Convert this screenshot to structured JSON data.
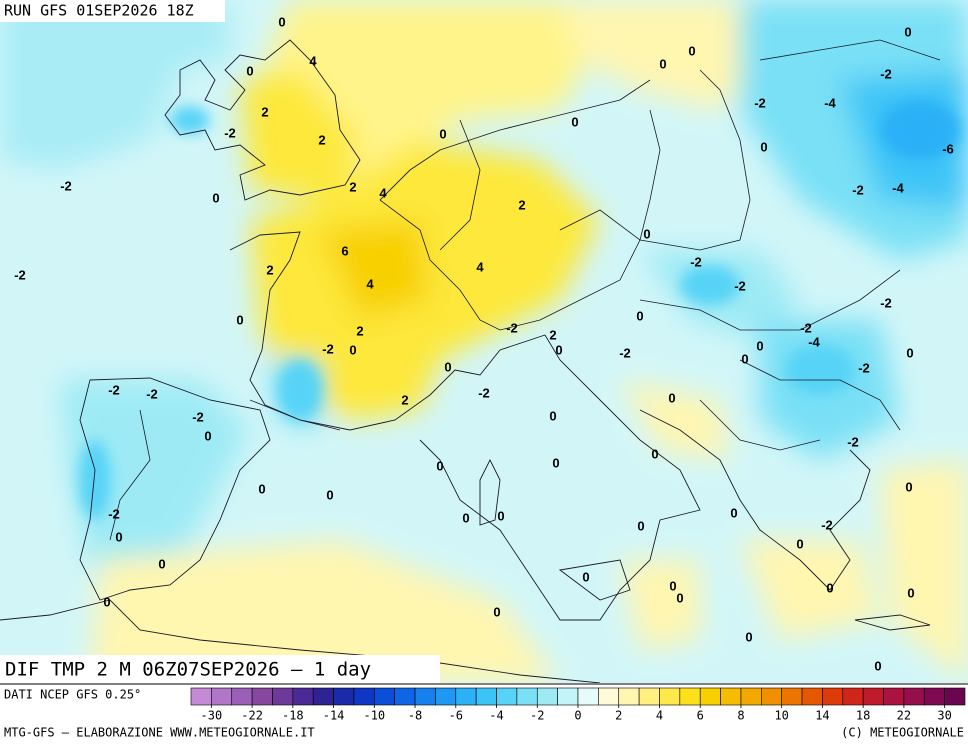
{
  "header": {
    "run": "RUN GFS 01SEP2026 18Z"
  },
  "map": {
    "field_label": "DIF TMP 2 M 06Z07SEP2026 — 1 day",
    "contour_labels": [
      0,
      4,
      0,
      2,
      -2,
      2,
      0,
      0,
      0,
      0,
      0,
      -2,
      -2,
      -4,
      -6,
      0,
      -2,
      -4,
      -2,
      0,
      2,
      4,
      2,
      0,
      6,
      2,
      -2,
      4,
      4,
      -2,
      -2,
      -2,
      0,
      2,
      -2,
      0,
      -2,
      2,
      0,
      0,
      -2,
      -2,
      -4,
      0,
      0,
      0,
      -2,
      0,
      -2,
      -2,
      -2,
      2,
      0,
      -2,
      0,
      0,
      -2,
      0,
      0,
      0,
      0,
      0,
      0,
      -2,
      0,
      0,
      0,
      -2,
      0,
      0,
      0,
      0,
      0,
      0,
      0,
      0,
      0,
      0,
      0,
      0,
      0
    ]
  },
  "footer": {
    "source": "DATI NCEP GFS 0.25°",
    "credit": "MTG-GFS — ELABORAZIONE WWW.METEOGIORNALE.IT",
    "copyright": "(C) METEOGIORNALE"
  },
  "colorbar": {
    "colors": [
      "#c58ad6",
      "#b276c8",
      "#9c5fb8",
      "#87479f",
      "#6d3a9a",
      "#4b2a96",
      "#2d2392",
      "#1a2aa8",
      "#0d37c4",
      "#0b4ed8",
      "#0e66e6",
      "#1680ee",
      "#2098f3",
      "#2cb0f6",
      "#3cc4f7",
      "#57d3f6",
      "#79e0f6",
      "#9deaf5",
      "#c3f4f8",
      "#e6fbfb",
      "#fffbd9",
      "#fff6b0",
      "#fff080",
      "#ffe84a",
      "#fde01a",
      "#f8d000",
      "#f6bd00",
      "#f3a800",
      "#f09000",
      "#ec7400",
      "#e65800",
      "#dd3c0a",
      "#d0261a",
      "#c01a2c",
      "#ac1240",
      "#960e4c",
      "#800a52",
      "#6a0650"
    ],
    "ticks": [
      -30,
      -22,
      -18,
      -14,
      -10,
      -8,
      -6,
      -4,
      -2,
      0,
      2,
      4,
      6,
      8,
      10,
      14,
      18,
      22,
      30
    ]
  }
}
